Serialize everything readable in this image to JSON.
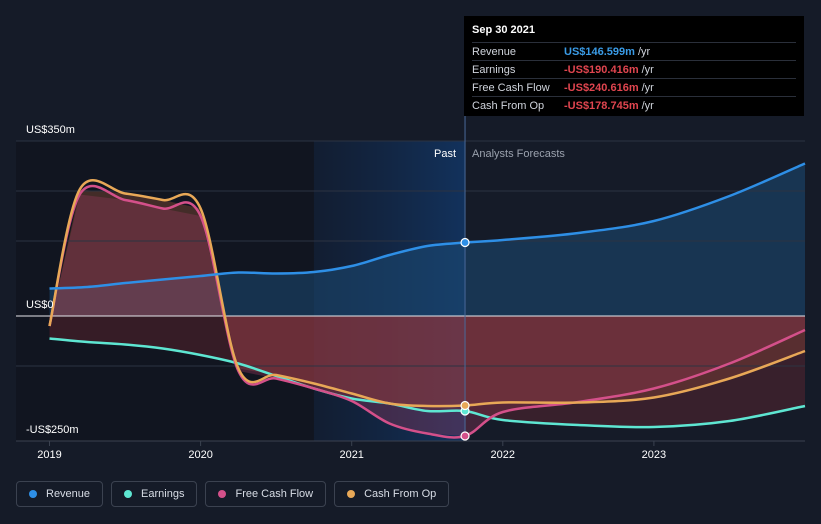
{
  "tooltip": {
    "date": "Sep 30 2021",
    "rows": [
      {
        "label": "Revenue",
        "value": "US$146.599m",
        "unit": "/yr",
        "color": "#3a9be6"
      },
      {
        "label": "Earnings",
        "value": "-US$190.416m",
        "unit": "/yr",
        "color": "#e0454f"
      },
      {
        "label": "Free Cash Flow",
        "value": "-US$240.616m",
        "unit": "/yr",
        "color": "#e0454f"
      },
      {
        "label": "Cash From Op",
        "value": "-US$178.745m",
        "unit": "/yr",
        "color": "#e0454f"
      }
    ]
  },
  "zones": {
    "past": "Past",
    "forecast": "Analysts Forecasts"
  },
  "legend": [
    {
      "label": "Revenue",
      "color": "#2e8fe6"
    },
    {
      "label": "Earnings",
      "color": "#5ee6d2"
    },
    {
      "label": "Free Cash Flow",
      "color": "#d4508a"
    },
    {
      "label": "Cash From Op",
      "color": "#e8a857"
    }
  ],
  "chart_data": {
    "type": "line",
    "ylim": [
      -250,
      350
    ],
    "y_tick_labels": [
      {
        "value": 350,
        "label": "US$350m"
      },
      {
        "value": 0,
        "label": "US$0"
      },
      {
        "value": -250,
        "label": "-US$250m"
      }
    ],
    "x_tick_labels": [
      {
        "value": 2019,
        "label": "2019"
      },
      {
        "value": 2020,
        "label": "2020"
      },
      {
        "value": 2021,
        "label": "2021"
      },
      {
        "value": 2022,
        "label": "2022"
      },
      {
        "value": 2023,
        "label": "2023"
      }
    ],
    "xlim": [
      2018.99,
      2024.0
    ],
    "past_end": 2021.75,
    "highlight_start": 2020.75,
    "series": [
      {
        "name": "Revenue",
        "color": "#2e8fe6",
        "points": [
          [
            2019.0,
            55
          ],
          [
            2019.25,
            58
          ],
          [
            2019.5,
            66
          ],
          [
            2019.75,
            73
          ],
          [
            2020.0,
            80
          ],
          [
            2020.25,
            87
          ],
          [
            2020.5,
            85
          ],
          [
            2020.75,
            88
          ],
          [
            2021.0,
            100
          ],
          [
            2021.25,
            122
          ],
          [
            2021.5,
            140
          ],
          [
            2021.75,
            147
          ],
          [
            2022.0,
            152
          ],
          [
            2022.5,
            166
          ],
          [
            2023.0,
            190
          ],
          [
            2023.5,
            240
          ],
          [
            2024.0,
            305
          ]
        ]
      },
      {
        "name": "Earnings",
        "color": "#5ee6d2",
        "points": [
          [
            2019.0,
            -45
          ],
          [
            2019.25,
            -52
          ],
          [
            2019.5,
            -57
          ],
          [
            2019.75,
            -65
          ],
          [
            2020.0,
            -78
          ],
          [
            2020.25,
            -95
          ],
          [
            2020.5,
            -120
          ],
          [
            2020.75,
            -145
          ],
          [
            2021.0,
            -165
          ],
          [
            2021.25,
            -175
          ],
          [
            2021.5,
            -190
          ],
          [
            2021.75,
            -190
          ],
          [
            2022.0,
            -208
          ],
          [
            2022.5,
            -218
          ],
          [
            2023.0,
            -222
          ],
          [
            2023.5,
            -210
          ],
          [
            2024.0,
            -180
          ]
        ]
      },
      {
        "name": "Free Cash Flow",
        "color": "#d4508a",
        "points": [
          [
            2019.0,
            -20
          ],
          [
            2019.2,
            243
          ],
          [
            2019.5,
            232
          ],
          [
            2019.75,
            215
          ],
          [
            2020.0,
            200
          ],
          [
            2020.25,
            -110
          ],
          [
            2020.5,
            -125
          ],
          [
            2020.75,
            -145
          ],
          [
            2021.0,
            -170
          ],
          [
            2021.25,
            -215
          ],
          [
            2021.5,
            -235
          ],
          [
            2021.75,
            -240
          ],
          [
            2022.0,
            -192
          ],
          [
            2022.5,
            -172
          ],
          [
            2023.0,
            -145
          ],
          [
            2023.5,
            -95
          ],
          [
            2024.0,
            -28
          ]
        ]
      },
      {
        "name": "Cash From Op",
        "color": "#e8a857",
        "points": [
          [
            2019.0,
            -20
          ],
          [
            2019.2,
            253
          ],
          [
            2019.5,
            245
          ],
          [
            2019.75,
            232
          ],
          [
            2020.0,
            215
          ],
          [
            2020.25,
            -105
          ],
          [
            2020.5,
            -118
          ],
          [
            2020.75,
            -135
          ],
          [
            2021.0,
            -155
          ],
          [
            2021.25,
            -175
          ],
          [
            2021.5,
            -180
          ],
          [
            2021.75,
            -179
          ],
          [
            2022.0,
            -173
          ],
          [
            2022.5,
            -173
          ],
          [
            2023.0,
            -163
          ],
          [
            2023.5,
            -125
          ],
          [
            2024.0,
            -70
          ]
        ]
      }
    ]
  }
}
